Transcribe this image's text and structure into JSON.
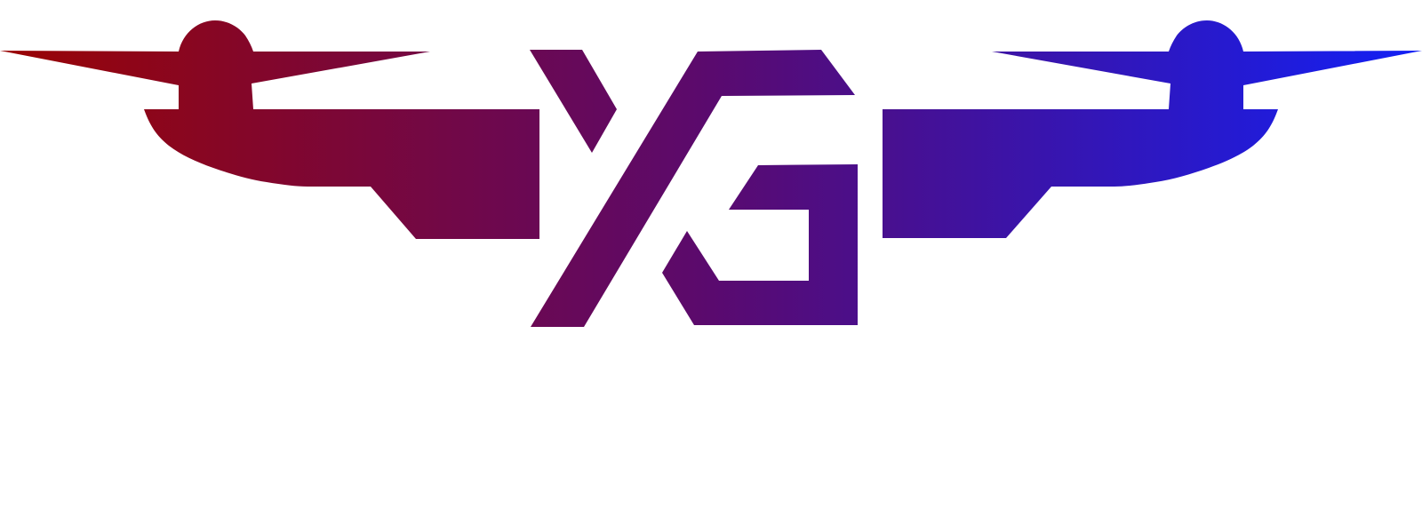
{
  "logo": {
    "name": "YG drone logo",
    "lettering": "YG",
    "colors": {
      "gradient_start": "#9a0404",
      "gradient_mid": "#5a0a6e",
      "gradient_end": "#1220f5",
      "background": "#ffffff"
    }
  }
}
